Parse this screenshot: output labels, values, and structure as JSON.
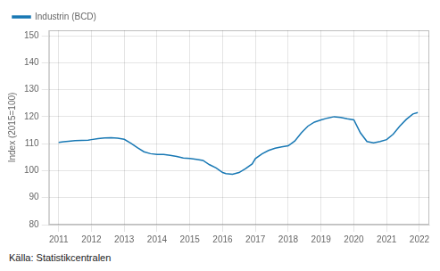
{
  "chart_data": {
    "type": "line",
    "ylabel": "Index (2015=100)",
    "annotation": "Källa: Statistikcentralen",
    "x": [
      2011.0,
      2011.15,
      2011.3,
      2011.5,
      2011.7,
      2011.9,
      2012.0,
      2012.2,
      2012.4,
      2012.6,
      2012.8,
      2013.0,
      2013.2,
      2013.4,
      2013.6,
      2013.8,
      2014.0,
      2014.2,
      2014.4,
      2014.6,
      2014.8,
      2015.0,
      2015.2,
      2015.4,
      2015.6,
      2015.8,
      2016.0,
      2016.1,
      2016.3,
      2016.5,
      2016.7,
      2016.9,
      2017.0,
      2017.2,
      2017.4,
      2017.6,
      2017.8,
      2018.0,
      2018.2,
      2018.4,
      2018.6,
      2018.8,
      2019.0,
      2019.2,
      2019.4,
      2019.6,
      2019.8,
      2020.0,
      2020.2,
      2020.4,
      2020.6,
      2020.8,
      2021.0,
      2021.2,
      2021.4,
      2021.6,
      2021.8,
      2021.95
    ],
    "series": [
      {
        "name": "Industrin (BCD)",
        "color": "#1878b4",
        "values": [
          110.5,
          110.7,
          110.9,
          111.1,
          111.2,
          111.3,
          111.5,
          111.9,
          112.1,
          112.2,
          112.0,
          111.6,
          110.2,
          108.5,
          107.0,
          106.3,
          106.0,
          106.0,
          105.7,
          105.3,
          104.7,
          104.5,
          104.2,
          103.8,
          102.2,
          101.0,
          99.3,
          98.9,
          98.7,
          99.3,
          100.8,
          102.5,
          104.5,
          106.2,
          107.5,
          108.3,
          108.8,
          109.2,
          111.0,
          114.0,
          116.5,
          118.0,
          118.8,
          119.5,
          120.0,
          119.7,
          119.2,
          118.8,
          114.0,
          110.8,
          110.3,
          110.8,
          111.5,
          113.5,
          116.5,
          119.0,
          121.0,
          121.5
        ]
      }
    ],
    "xlim": [
      2010.7,
      2022.3
    ],
    "xticks": [
      2011,
      2012,
      2013,
      2014,
      2015,
      2016,
      2017,
      2018,
      2019,
      2020,
      2021,
      2022
    ],
    "ylim": [
      80,
      152
    ],
    "yticks": [
      80,
      90,
      100,
      110,
      120,
      130,
      140,
      150
    ],
    "grid": true,
    "legend": "upper left"
  }
}
